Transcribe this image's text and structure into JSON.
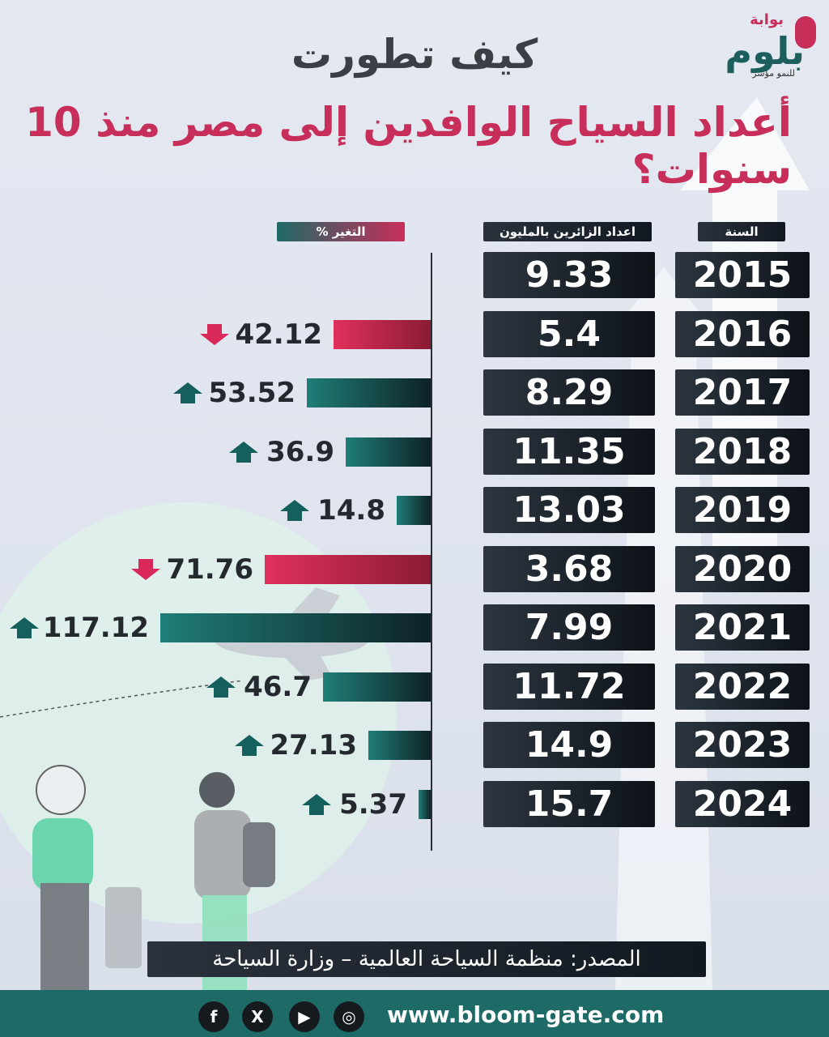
{
  "header": {
    "title_line1": "كيف تطورت",
    "title_line2": "أعداد السياح الوافدين إلى مصر منذ 10 سنوات؟"
  },
  "logo": {
    "top": "بوابة",
    "main": "بلوم",
    "sub": "للنمو مؤشر"
  },
  "columns": {
    "year": "السنة",
    "visitors": "اعداد الزائرين بالمليون",
    "change": "التغير %"
  },
  "colors": {
    "increase": "#1f7d77",
    "decrease": "#e0305c",
    "footer": "#1d6a66"
  },
  "chart_data": {
    "type": "bar",
    "categories": [
      "2015",
      "2016",
      "2017",
      "2018",
      "2019",
      "2020",
      "2021",
      "2022",
      "2023",
      "2024"
    ],
    "series": [
      {
        "values": [
          9.33,
          5.4,
          8.29,
          11.35,
          13.03,
          3.68,
          7.99,
          11.72,
          14.9,
          15.7
        ]
      },
      {
        "values": [
          null,
          -42.12,
          53.52,
          36.9,
          14.8,
          -71.76,
          117.12,
          46.7,
          27.13,
          5.37
        ]
      }
    ],
    "visitor_labels": [
      "9.33",
      "5.4",
      "8.29",
      "11.35",
      "13.03",
      "3.68",
      "7.99",
      "11.72",
      "14.9",
      "15.7"
    ],
    "change_labels": [
      "",
      "42.12",
      "53.52",
      "36.9",
      "14.8",
      "71.76",
      "117.12",
      "46.7",
      "27.13",
      "5.37"
    ],
    "direction": [
      "none",
      "down",
      "up",
      "up",
      "up",
      "down",
      "up",
      "up",
      "up",
      "up"
    ],
    "orientation": "horizontal"
  },
  "source": "المصدر: منظمة السياحة العالمية – وزارة السياحة",
  "footer": {
    "url": "www.bloom-gate.com",
    "social_icons": [
      "facebook-icon",
      "x-icon",
      "youtube-icon",
      "instagram-icon"
    ]
  }
}
